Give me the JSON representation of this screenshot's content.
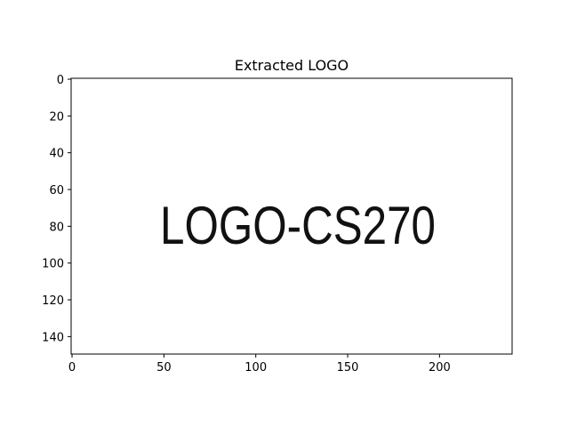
{
  "figure": {
    "title": "Extracted LOGO",
    "image_text": "LOGO-CS270",
    "image_size": {
      "width": 240,
      "height": 150
    },
    "x_ticks": [
      0,
      50,
      100,
      150,
      200
    ],
    "y_ticks": [
      0,
      20,
      40,
      60,
      80,
      100,
      120,
      140
    ],
    "colors": {
      "background": "#ffffff",
      "frame": "#000000",
      "logo_ink": "#111111"
    }
  }
}
